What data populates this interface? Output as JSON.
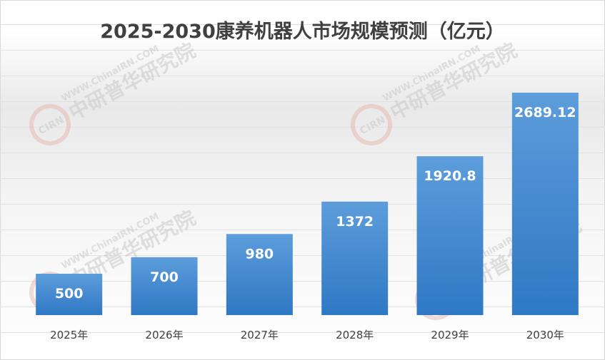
{
  "chart_data": {
    "type": "bar",
    "title": "2025-2030康养机器人市场规模预测（亿元）",
    "categories": [
      "2025年",
      "2026年",
      "2027年",
      "2028年",
      "2029年",
      "2030年"
    ],
    "values": [
      500,
      700,
      980,
      1372,
      1920.8,
      2689.12
    ],
    "value_labels": [
      "500",
      "700",
      "980",
      "1372",
      "1920.8",
      "2689.12"
    ],
    "ylim": [
      0,
      2689.12
    ],
    "grid": false,
    "legend": "none"
  },
  "watermark": {
    "site": "WWW.ChinaIRN.COM",
    "brand": "中研普华研究院",
    "logo": "CIRN"
  },
  "colors": {
    "bar_top": "#5b9bd5",
    "bar_bottom": "#2e74c0",
    "title": "#404040",
    "axis_label": "#404040"
  }
}
